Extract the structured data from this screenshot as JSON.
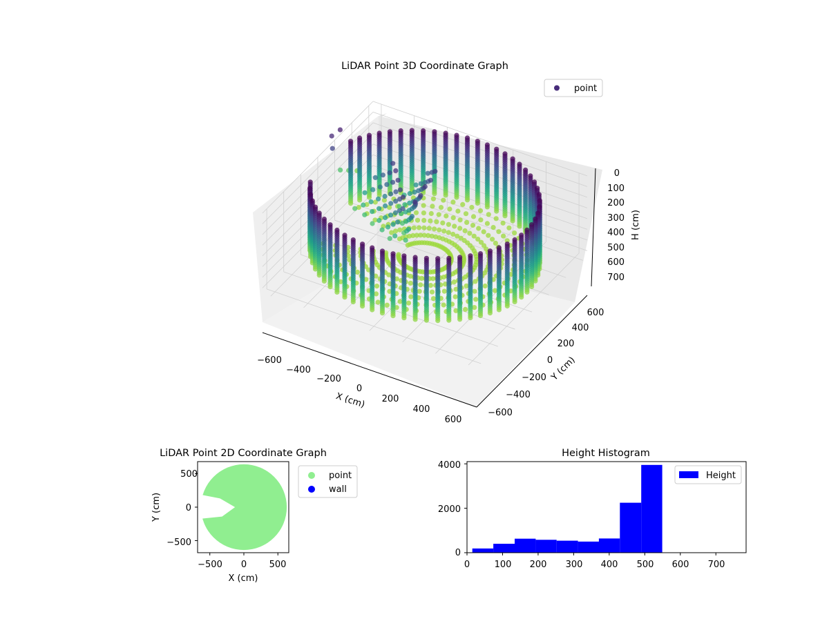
{
  "chart_data": [
    {
      "type": "scatter",
      "projection": "3d",
      "title": "LiDAR Point 3D Coordinate Graph",
      "xlabel": "X (cm)",
      "ylabel": "Y (cm)",
      "zlabel": "H (cm)",
      "xticks": [
        "−600",
        "−400",
        "−200",
        "0",
        "200",
        "400",
        "600"
      ],
      "yticks": [
        "−600",
        "−400",
        "−200",
        "0",
        "200",
        "400",
        "600"
      ],
      "zticks": [
        "0",
        "100",
        "200",
        "300",
        "400",
        "500",
        "600",
        "700"
      ],
      "xlim": [
        -650,
        650
      ],
      "ylim": [
        -650,
        650
      ],
      "zlim": [
        0,
        750
      ],
      "z_inverted": true,
      "legend": {
        "location": "upper right",
        "entries": [
          {
            "label": "point",
            "color": "#472c7a"
          }
        ]
      },
      "colormap": "viridis",
      "wall_radius": 620,
      "grid": true
    },
    {
      "type": "scatter",
      "title": "LiDAR Point 2D Coordinate Graph",
      "xlabel": "X (cm)",
      "ylabel": "Y (cm)",
      "xticks": [
        "−500",
        "0",
        "500"
      ],
      "yticks": [
        "−500",
        "0",
        "500"
      ],
      "xlim": [
        -680,
        660
      ],
      "ylim": [
        -680,
        680
      ],
      "disk_radius": 630,
      "legend": {
        "location": "outside right",
        "entries": [
          {
            "label": "point",
            "color": "#90ee90"
          },
          {
            "label": "wall",
            "color": "#0000ff"
          }
        ]
      }
    },
    {
      "type": "bar",
      "title": "Height Histogram",
      "xticks": [
        "0",
        "100",
        "200",
        "300",
        "400",
        "500",
        "600",
        "700"
      ],
      "yticks": [
        "0",
        "2000",
        "4000"
      ],
      "xlim": [
        0,
        785
      ],
      "ylim": [
        0,
        4100
      ],
      "bin_edges": [
        15,
        74,
        134,
        193,
        252,
        312,
        371,
        430,
        490,
        549,
        608,
        667,
        727
      ],
      "values": [
        190,
        400,
        630,
        580,
        540,
        500,
        640,
        2250,
        3950,
        0,
        0,
        0
      ],
      "color": "#0000ff",
      "legend": {
        "location": "upper right",
        "entries": [
          {
            "label": "Height",
            "color": "#0000ff"
          }
        ]
      }
    }
  ]
}
